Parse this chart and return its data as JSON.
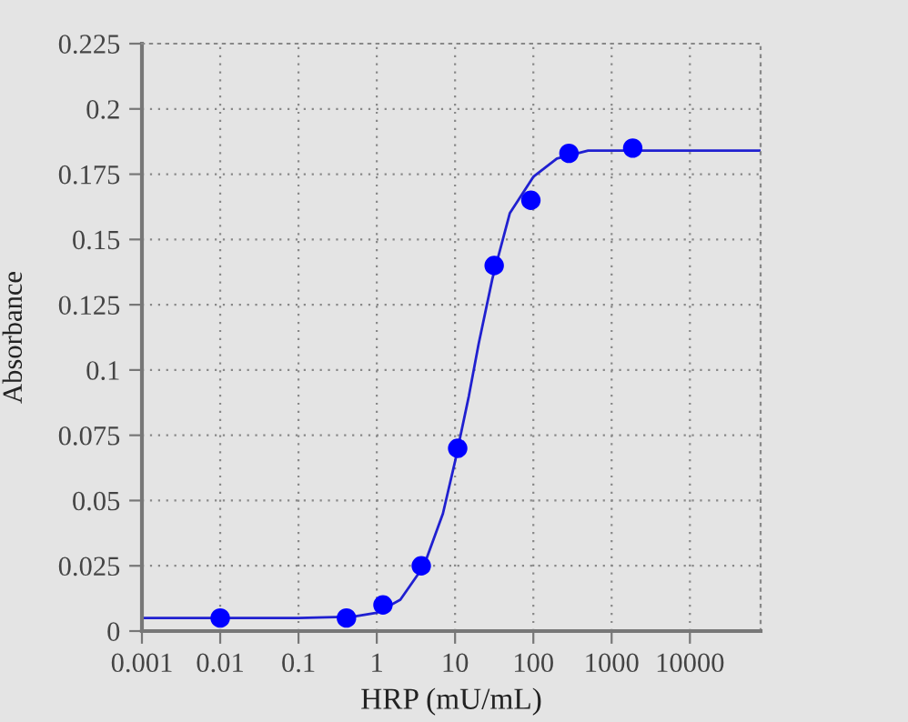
{
  "chart_data": {
    "type": "scatter",
    "xlabel": "HRP (mU/mL)",
    "ylabel": "Absorbance",
    "log": "x",
    "xlim": [
      0.001,
      80000
    ],
    "xticks": [
      0.001,
      0.01,
      0.1,
      1,
      10,
      100,
      1000,
      10000
    ],
    "ylim": [
      0,
      0.225
    ],
    "yticks": [
      0,
      0.025,
      0.05,
      0.075,
      0.1,
      0.125,
      0.15,
      0.175,
      0.2,
      0.225
    ],
    "grid": true,
    "series": [
      {
        "marker": "circle",
        "color": "#0000ff",
        "x": [
          0.01,
          0.41,
          1.2,
          3.7,
          10.8,
          31.6,
          93,
          285,
          1860
        ],
        "values": [
          0.005,
          0.005,
          0.01,
          0.025,
          0.07,
          0.14,
          0.165,
          0.183,
          0.185
        ]
      },
      {
        "type": "line",
        "color": "#2020d0",
        "marker": "none",
        "line_style": "solid",
        "x": [
          0.001,
          0.1,
          0.5,
          1,
          2,
          4,
          7,
          10,
          15,
          20,
          30,
          50,
          100,
          200,
          500,
          1000,
          80000
        ],
        "values": [
          0.005,
          0.005,
          0.0055,
          0.007,
          0.012,
          0.025,
          0.045,
          0.065,
          0.09,
          0.11,
          0.135,
          0.16,
          0.174,
          0.181,
          0.184,
          0.184,
          0.184
        ]
      }
    ]
  }
}
